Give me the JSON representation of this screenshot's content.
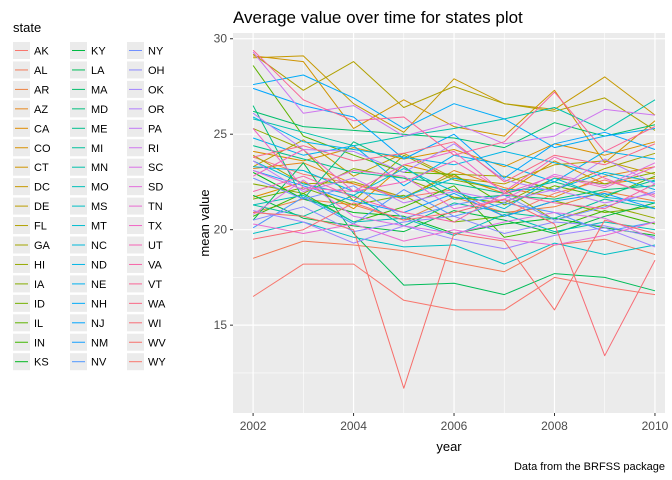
{
  "chart_data": {
    "type": "line",
    "title": "Average value over time for states plot",
    "xlabel": "year",
    "ylabel": "mean value",
    "caption": "Data from the BRFSS package",
    "legend_title": "state",
    "legend_position": "left",
    "grid": true,
    "xlim": [
      2001.6,
      2010.2
    ],
    "ylim": [
      10.4,
      30.3
    ],
    "x_ticks": [
      2002,
      2004,
      2006,
      2008,
      2010
    ],
    "y_ticks": [
      15,
      20,
      25,
      30
    ],
    "x": [
      2002,
      2003,
      2004,
      2005,
      2006,
      2007,
      2008,
      2009,
      2010
    ],
    "series": [
      {
        "name": "AK",
        "color": "#F8766D",
        "values": [
          23.8,
          22.9,
          22.4,
          21.7,
          22.1,
          20.7,
          21.9,
          22.6,
          21.8
        ]
      },
      {
        "name": "AL",
        "color": "#F37B59",
        "values": [
          18.5,
          19.4,
          19.2,
          18.9,
          18.3,
          17.8,
          19.2,
          19.5,
          18.7
        ]
      },
      {
        "name": "AR",
        "color": "#ED8141",
        "values": [
          20.9,
          21.6,
          21.3,
          20.5,
          21.7,
          20.9,
          21.2,
          22.0,
          21.5
        ]
      },
      {
        "name": "AZ",
        "color": "#E7861B",
        "values": [
          23.2,
          23.5,
          22.4,
          21.6,
          23.1,
          22.2,
          21.7,
          22.8,
          23.3
        ]
      },
      {
        "name": "CA",
        "color": "#E08B00",
        "values": [
          21.7,
          22.5,
          21.1,
          23.4,
          22.8,
          21.9,
          23.6,
          22.4,
          22.7
        ]
      },
      {
        "name": "CO",
        "color": "#D89000",
        "values": [
          24.1,
          23.6,
          24.3,
          23.7,
          24.2,
          23.3,
          24.5,
          23.9,
          24.6
        ]
      },
      {
        "name": "CT",
        "color": "#CF9400",
        "values": [
          29.1,
          28.8,
          25.3,
          26.8,
          25.4,
          24.9,
          27.3,
          23.5,
          25.7
        ]
      },
      {
        "name": "DC",
        "color": "#C69900",
        "values": [
          29.0,
          29.1,
          26.6,
          25.1,
          27.9,
          26.6,
          26.3,
          28.0,
          26.0
        ]
      },
      {
        "name": "DE",
        "color": "#BB9D00",
        "values": [
          23.3,
          24.7,
          22.8,
          24.0,
          22.7,
          22.4,
          23.4,
          23.6,
          22.9
        ]
      },
      {
        "name": "FL",
        "color": "#B0A100",
        "values": [
          29.2,
          27.3,
          28.8,
          26.4,
          27.5,
          26.6,
          26.2,
          26.9,
          25.2
        ]
      },
      {
        "name": "GA",
        "color": "#A3A500",
        "values": [
          23.9,
          22.4,
          22.5,
          21.7,
          22.9,
          22.8,
          22.1,
          23.2,
          24.0
        ]
      },
      {
        "name": "HI",
        "color": "#96A900",
        "values": [
          25.3,
          24.2,
          21.5,
          23.9,
          22.6,
          22.1,
          20.5,
          21.3,
          20.6
        ]
      },
      {
        "name": "IA",
        "color": "#86AC00",
        "values": [
          22.4,
          21.9,
          23.2,
          22.7,
          21.7,
          21.4,
          22.7,
          22.4,
          23.0
        ]
      },
      {
        "name": "ID",
        "color": "#74B000",
        "values": [
          21.6,
          22.2,
          21.3,
          21.8,
          20.4,
          20.7,
          21.5,
          20.9,
          21.2
        ]
      },
      {
        "name": "IL",
        "color": "#5EB300",
        "values": [
          28.6,
          24.9,
          23.9,
          23.0,
          22.9,
          21.3,
          22.3,
          21.7,
          22.8
        ]
      },
      {
        "name": "IN",
        "color": "#3FB600",
        "values": [
          20.7,
          21.9,
          20.4,
          21.2,
          22.3,
          19.6,
          20.1,
          21.0,
          20.3
        ]
      },
      {
        "name": "KS",
        "color": "#00B81F",
        "values": [
          23.0,
          21.6,
          20.9,
          20.7,
          19.8,
          20.3,
          20.6,
          20.1,
          19.7
        ]
      },
      {
        "name": "KY",
        "color": "#00BA42",
        "values": [
          21.8,
          20.6,
          20.2,
          19.9,
          21.0,
          20.5,
          19.8,
          20.7,
          21.4
        ]
      },
      {
        "name": "LA",
        "color": "#00BC59",
        "values": [
          20.5,
          23.5,
          19.8,
          17.1,
          17.2,
          16.6,
          17.7,
          17.5,
          16.8
        ]
      },
      {
        "name": "MA",
        "color": "#00BE6C",
        "values": [
          26.2,
          25.4,
          25.2,
          25.0,
          24.8,
          24.3,
          25.6,
          24.9,
          25.5
        ]
      },
      {
        "name": "MD",
        "color": "#00BF7D",
        "values": [
          26.5,
          21.6,
          24.6,
          23.3,
          21.6,
          21.8,
          21.6,
          22.1,
          22.3
        ]
      },
      {
        "name": "ME",
        "color": "#00C08D",
        "values": [
          24.4,
          23.7,
          23.0,
          22.7,
          22.4,
          21.9,
          22.5,
          21.8,
          22.6
        ]
      },
      {
        "name": "MI",
        "color": "#00C19C",
        "values": [
          21.3,
          20.7,
          21.8,
          20.2,
          21.4,
          20.9,
          20.6,
          21.6,
          21.1
        ]
      },
      {
        "name": "MN",
        "color": "#00C1AA",
        "values": [
          25.8,
          25.1,
          24.4,
          24.9,
          25.3,
          25.8,
          26.4,
          25.2,
          26.8
        ]
      },
      {
        "name": "MO",
        "color": "#00C0B8",
        "values": [
          21.3,
          21.8,
          20.4,
          20.6,
          19.7,
          20.8,
          19.9,
          20.4,
          20.0
        ]
      },
      {
        "name": "MS",
        "color": "#00BFC4",
        "values": [
          19.8,
          20.4,
          19.6,
          19.1,
          19.2,
          18.2,
          19.3,
          18.7,
          19.2
        ]
      },
      {
        "name": "MT",
        "color": "#00BDD0",
        "values": [
          23.6,
          22.4,
          21.8,
          23.2,
          22.0,
          21.1,
          22.7,
          21.7,
          21.4
        ]
      },
      {
        "name": "NC",
        "color": "#00BADB",
        "values": [
          23.3,
          23.1,
          22.0,
          21.7,
          22.7,
          22.1,
          22.1,
          23.0,
          22.5
        ]
      },
      {
        "name": "ND",
        "color": "#00B6E6",
        "values": [
          25.9,
          24.6,
          24.2,
          23.8,
          23.4,
          24.1,
          23.5,
          22.9,
          22.1
        ]
      },
      {
        "name": "NE",
        "color": "#00B1F0",
        "values": [
          24.8,
          23.9,
          24.4,
          22.3,
          23.9,
          23.4,
          22.5,
          24.1,
          23.7
        ]
      },
      {
        "name": "NH",
        "color": "#00ABF9",
        "values": [
          27.6,
          28.1,
          26.9,
          25.3,
          26.6,
          25.8,
          24.3,
          24.9,
          25.3
        ]
      },
      {
        "name": "NJ",
        "color": "#00A5FF",
        "values": [
          27.4,
          26.5,
          25.9,
          23.7,
          25.0,
          22.7,
          24.5,
          25.1,
          24.2
        ]
      },
      {
        "name": "NM",
        "color": "#149EFF",
        "values": [
          23.1,
          22.3,
          21.5,
          20.9,
          21.9,
          20.7,
          21.5,
          21.9,
          21.1
        ]
      },
      {
        "name": "NV",
        "color": "#4E97FF",
        "values": [
          20.1,
          21.7,
          20.3,
          22.1,
          20.7,
          21.4,
          20.9,
          19.9,
          20.4
        ]
      },
      {
        "name": "NY",
        "color": "#7190FF",
        "values": [
          22.7,
          21.6,
          22.3,
          20.6,
          21.3,
          21.8,
          20.5,
          21.2,
          22.0
        ]
      },
      {
        "name": "OH",
        "color": "#8B89FF",
        "values": [
          20.5,
          21.2,
          19.9,
          20.4,
          20.7,
          19.8,
          20.4,
          20.2,
          19.6
        ]
      },
      {
        "name": "OK",
        "color": "#A083FF",
        "values": [
          21.0,
          20.4,
          19.3,
          20.2,
          19.5,
          19.0,
          19.7,
          20.1,
          19.1
        ]
      },
      {
        "name": "OR",
        "color": "#B17EFD",
        "values": [
          26.1,
          24.2,
          24.1,
          23.0,
          24.5,
          22.6,
          22.0,
          23.7,
          22.4
        ]
      },
      {
        "name": "PA",
        "color": "#C17AF7",
        "values": [
          23.6,
          22.0,
          22.7,
          21.4,
          22.0,
          21.5,
          22.1,
          21.4,
          21.9
        ]
      },
      {
        "name": "RI",
        "color": "#CE76EF",
        "values": [
          29.3,
          26.1,
          26.5,
          24.9,
          25.6,
          24.5,
          24.9,
          26.3,
          26.0
        ]
      },
      {
        "name": "SC",
        "color": "#DA72E6",
        "values": [
          20.8,
          22.6,
          20.7,
          20.2,
          19.8,
          20.4,
          20.9,
          20.6,
          19.5
        ]
      },
      {
        "name": "SD",
        "color": "#E36EDC",
        "values": [
          23.1,
          22.1,
          23.1,
          22.8,
          21.1,
          21.6,
          22.9,
          22.3,
          23.5
        ]
      },
      {
        "name": "TN",
        "color": "#EA6CD1",
        "values": [
          20.3,
          19.8,
          20.3,
          19.4,
          20.0,
          19.5,
          19.2,
          19.7,
          20.4
        ]
      },
      {
        "name": "TX",
        "color": "#F066C4",
        "values": [
          25.3,
          22.2,
          22.0,
          23.4,
          24.1,
          21.9,
          22.8,
          22.2,
          23.3
        ]
      },
      {
        "name": "UT",
        "color": "#F463B6",
        "values": [
          22.8,
          24.2,
          22.0,
          22.5,
          23.6,
          22.0,
          23.8,
          22.7,
          21.7
        ]
      },
      {
        "name": "VA",
        "color": "#F763A7",
        "values": [
          22.0,
          22.8,
          21.7,
          20.9,
          20.4,
          21.9,
          21.4,
          21.1,
          22.4
        ]
      },
      {
        "name": "VT",
        "color": "#F96496",
        "values": [
          29.4,
          26.8,
          25.7,
          25.9,
          23.9,
          24.6,
          27.2,
          24.1,
          25.4
        ]
      },
      {
        "name": "WA",
        "color": "#F96785",
        "values": [
          23.8,
          24.4,
          23.6,
          24.0,
          24.6,
          22.5,
          23.9,
          23.4,
          24.5
        ]
      },
      {
        "name": "WI",
        "color": "#F86B75",
        "values": [
          19.5,
          20.0,
          21.4,
          20.5,
          20.9,
          21.6,
          20.3,
          13.4,
          18.4
        ]
      },
      {
        "name": "WV",
        "color": "#F76E6A",
        "values": [
          20.9,
          20.7,
          20.0,
          11.7,
          19.8,
          19.4,
          15.8,
          20.5,
          19.8
        ]
      },
      {
        "name": "WY",
        "color": "#F8766D",
        "values": [
          16.5,
          18.2,
          18.2,
          16.3,
          15.8,
          15.8,
          17.5,
          17.0,
          16.6
        ]
      }
    ]
  }
}
